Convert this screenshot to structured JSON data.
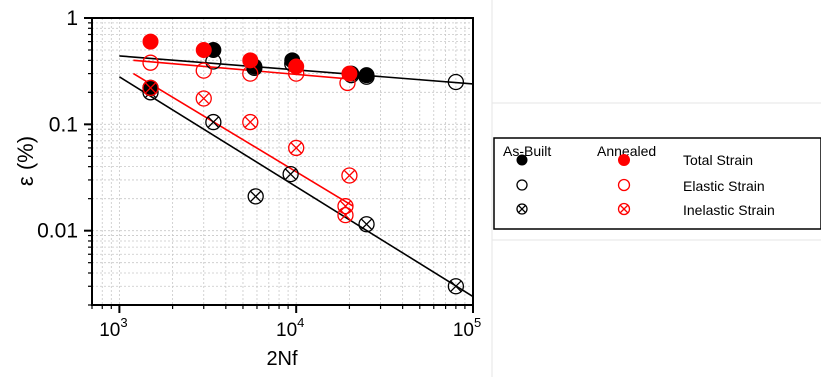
{
  "chart_data": {
    "type": "scatter",
    "title": "",
    "xlabel": "2Nf",
    "ylabel": "ε (%)",
    "x_scale": "log",
    "y_scale": "log",
    "xlim": [
      700,
      100000
    ],
    "ylim": [
      0.002,
      1
    ],
    "grid": true,
    "x_ticks": [
      {
        "value": 1000,
        "base": "10",
        "exp": "3"
      },
      {
        "value": 10000,
        "base": "10",
        "exp": "4"
      },
      {
        "value": 100000,
        "base": "10",
        "exp": "5"
      }
    ],
    "y_ticks": [
      {
        "value": 1,
        "label": "1"
      },
      {
        "value": 0.1,
        "label": "0.1"
      },
      {
        "value": 0.01,
        "label": "0.01"
      }
    ],
    "legend": {
      "placement": "right",
      "group_headers": [
        "As-Built",
        "Annealed"
      ],
      "entries": [
        {
          "label": "Total Strain",
          "marker": "filled"
        },
        {
          "label": "Elastic Strain",
          "marker": "open"
        },
        {
          "label": "Inelastic Strain",
          "marker": "crossed"
        }
      ]
    },
    "colors": {
      "As-Built": "#000000",
      "Annealed": "#ff0000"
    },
    "series": [
      {
        "group": "As-Built",
        "kind": "Total Strain",
        "marker": "filled",
        "points": [
          [
            1500,
            0.22
          ],
          [
            3400,
            0.5
          ],
          [
            5800,
            0.35
          ],
          [
            9500,
            0.4
          ],
          [
            20500,
            0.3
          ],
          [
            25000,
            0.29
          ]
        ]
      },
      {
        "group": "As-Built",
        "kind": "Elastic Strain",
        "marker": "open",
        "points": [
          [
            1500,
            0.22
          ],
          [
            3400,
            0.39
          ],
          [
            5800,
            0.34
          ],
          [
            9500,
            0.37
          ],
          [
            20500,
            0.29
          ],
          [
            25000,
            0.28
          ],
          [
            80000,
            0.25
          ]
        ]
      },
      {
        "group": "As-Built",
        "kind": "Inelastic Strain",
        "marker": "crossed",
        "points": [
          [
            1500,
            0.2
          ],
          [
            3400,
            0.105
          ],
          [
            5900,
            0.021
          ],
          [
            9300,
            0.034
          ],
          [
            25000,
            0.0115
          ],
          [
            80000,
            0.003
          ]
        ]
      },
      {
        "group": "Annealed",
        "kind": "Total Strain",
        "marker": "filled",
        "points": [
          [
            1500,
            0.6
          ],
          [
            3000,
            0.5
          ],
          [
            5500,
            0.4
          ],
          [
            10000,
            0.35
          ],
          [
            20000,
            0.3
          ]
        ]
      },
      {
        "group": "Annealed",
        "kind": "Elastic Strain",
        "marker": "open",
        "points": [
          [
            1500,
            0.38
          ],
          [
            3000,
            0.32
          ],
          [
            5500,
            0.3
          ],
          [
            10000,
            0.3
          ],
          [
            19500,
            0.245
          ]
        ]
      },
      {
        "group": "Annealed",
        "kind": "Inelastic Strain",
        "marker": "crossed",
        "points": [
          [
            1500,
            0.22
          ],
          [
            3000,
            0.175
          ],
          [
            5500,
            0.105
          ],
          [
            10000,
            0.06
          ],
          [
            20000,
            0.033
          ],
          [
            19000,
            0.017
          ],
          [
            19000,
            0.014
          ]
        ]
      }
    ],
    "fit_lines": [
      {
        "group": "As-Built",
        "kind": "Elastic Strain",
        "color": "#000000",
        "from": [
          1000,
          0.44
        ],
        "to": [
          100000,
          0.24
        ]
      },
      {
        "group": "Annealed",
        "kind": "Elastic Strain",
        "color": "#ff0000",
        "from": [
          1200,
          0.4
        ],
        "to": [
          21000,
          0.265
        ]
      },
      {
        "group": "As-Built",
        "kind": "Inelastic Strain",
        "color": "#000000",
        "from": [
          1000,
          0.28
        ],
        "to": [
          100000,
          0.0024
        ]
      },
      {
        "group": "Annealed",
        "kind": "Inelastic Strain",
        "color": "#ff0000",
        "from": [
          1200,
          0.3
        ],
        "to": [
          21000,
          0.017
        ]
      }
    ]
  }
}
